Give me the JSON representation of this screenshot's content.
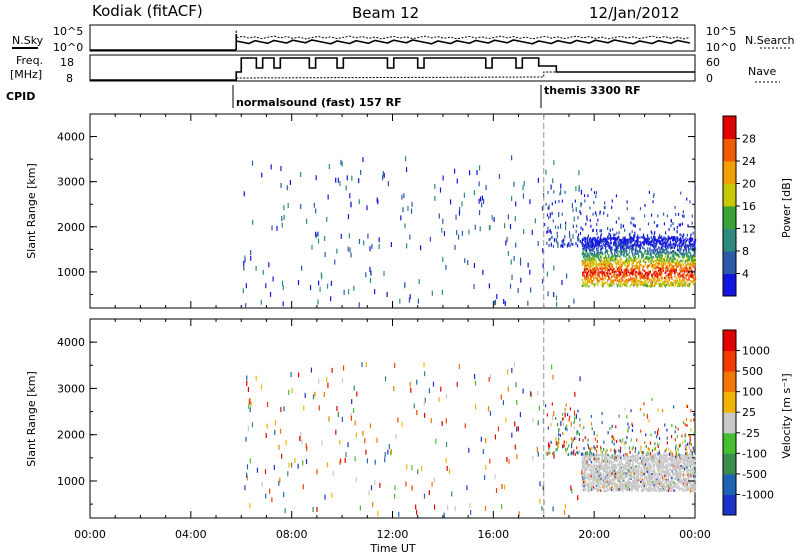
{
  "header": {
    "station": "Kodiak (fitACF)",
    "beam": "Beam 12",
    "date": "12/Jan/2012"
  },
  "params_panel": {
    "nsky_label": "N.Sky",
    "nsearch_label": "N.Search",
    "freq_label_1": "Freq.",
    "freq_label_2": "[MHz]",
    "nave_label": "Nave",
    "cpid_label": "CPID",
    "left_ticks_top": [
      "10^5",
      "10^0"
    ],
    "right_ticks_top": [
      "10^5",
      "10^0"
    ],
    "left_ticks_freq": [
      "18",
      "8"
    ],
    "right_ticks_nave": [
      "60",
      "0"
    ],
    "cpid_modes": [
      {
        "name": "normalsound (fast) 157 RF",
        "start_hour": 5.8
      },
      {
        "name": "themis 3300 RF",
        "start_hour": 18.0
      }
    ]
  },
  "chart_data": [
    {
      "type": "heatmap",
      "name": "power",
      "ylabel": "Slant Range [km]",
      "ylim": [
        200,
        4500
      ],
      "yticks": [
        "1000",
        "2000",
        "3000",
        "4000"
      ],
      "colorbar": {
        "label": "Power [dB]",
        "ticks": [
          "4",
          "8",
          "12",
          "16",
          "20",
          "24",
          "28"
        ],
        "colors": [
          "#1414e0",
          "#2d5aa8",
          "#2e8a7a",
          "#3aa23a",
          "#c8c800",
          "#f0a000",
          "#f05a00",
          "#e00000"
        ]
      }
    },
    {
      "type": "heatmap",
      "name": "velocity",
      "ylabel": "Slant Range [km]",
      "ylim": [
        200,
        4500
      ],
      "yticks": [
        "1000",
        "2000",
        "3000",
        "4000"
      ],
      "xlabel": "Time UT",
      "xticks": [
        "00:00",
        "04:00",
        "08:00",
        "12:00",
        "16:00",
        "20:00",
        "00:00"
      ],
      "xlim_hours": [
        0,
        24
      ],
      "colorbar": {
        "label": "Velocity [m s⁻¹]",
        "ticks": [
          "1000",
          "500",
          "100",
          "25",
          "-25",
          "-100",
          "-500",
          "-1000"
        ],
        "colors": [
          "#1e32c8",
          "#1e64b4",
          "#3c8c50",
          "#46be32",
          "#c8c8c8",
          "#f0b400",
          "#f07800",
          "#f03c00",
          "#e00000"
        ]
      }
    }
  ]
}
